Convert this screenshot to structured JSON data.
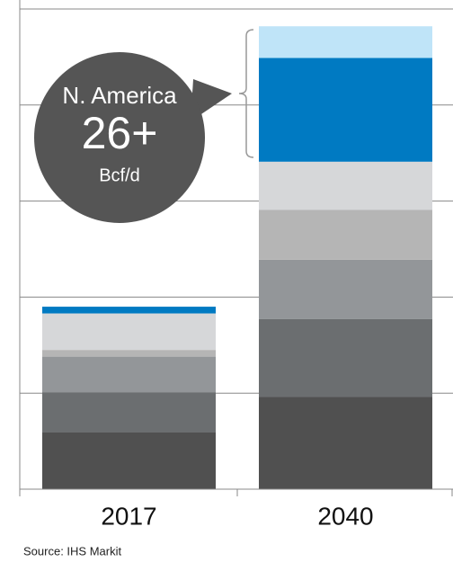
{
  "chart_data": {
    "type": "stacked-bar",
    "categories": [
      "2017",
      "2040"
    ],
    "series": [
      {
        "color": "#505050",
        "values": [
          0.59,
          0.96
        ]
      },
      {
        "color": "#6b6e70",
        "values": [
          0.42,
          0.81
        ]
      },
      {
        "color": "#939699",
        "values": [
          0.37,
          0.62
        ]
      },
      {
        "color": "#b5b5b5",
        "values": [
          0.07,
          0.52
        ]
      },
      {
        "color": "#d6d7d9",
        "values": [
          0.38,
          0.5
        ]
      },
      {
        "color": "#007ac2",
        "values": [
          0.07,
          1.08
        ]
      },
      {
        "color": "#bfe4f8",
        "values": [
          0,
          0.33
        ]
      }
    ],
    "ylim": [
      0,
      5
    ],
    "yticks": [
      0,
      1,
      2,
      3,
      4,
      5
    ],
    "grid": true,
    "annotation": {
      "region": "N. America",
      "value": "26+",
      "unit": "Bcf/d"
    },
    "source": "Source: IHS Markit"
  }
}
